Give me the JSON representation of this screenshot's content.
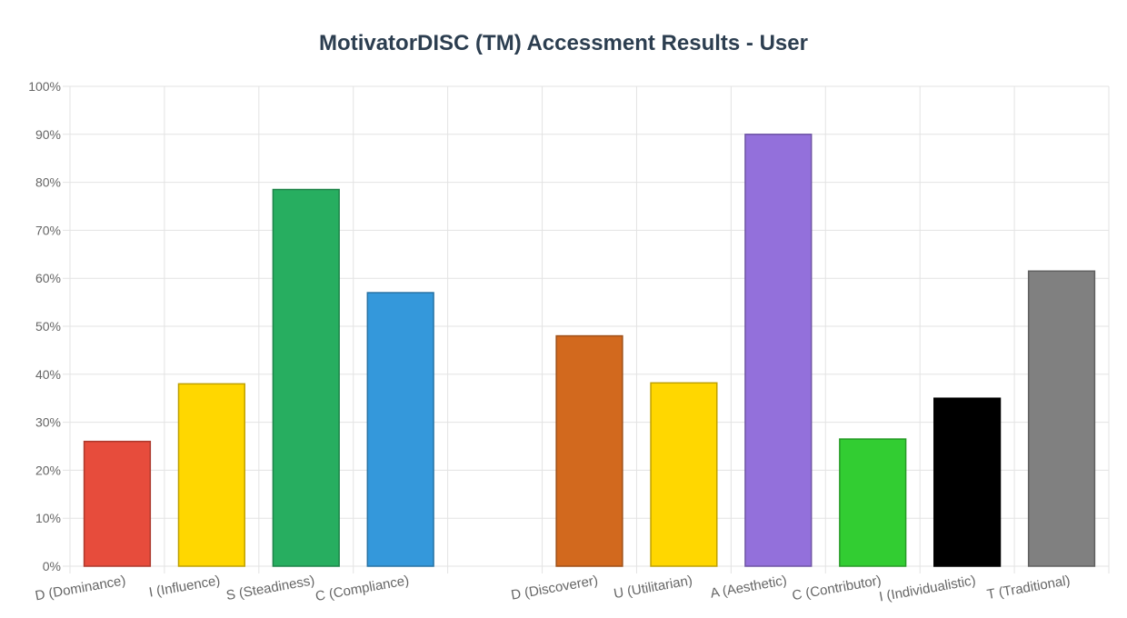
{
  "chart_data": {
    "type": "bar",
    "title": "MotivatorDISC (TM) Accessment Results - User",
    "xlabel": "",
    "ylabel": "",
    "ylim": [
      0,
      100
    ],
    "y_tick_format": "percent",
    "y_ticks": [
      0,
      10,
      20,
      30,
      40,
      50,
      60,
      70,
      80,
      90,
      100
    ],
    "grid": true,
    "legend": "none",
    "categories": [
      "D (Dominance)",
      "I (Influence)",
      "S (Steadiness)",
      "C (Compliance)",
      "",
      "D (Discoverer)",
      "U (Utilitarian)",
      "A (Aesthetic)",
      "C (Contributor)",
      "I (Individualistic)",
      "T (Traditional)"
    ],
    "values": [
      26,
      38,
      78.5,
      57,
      null,
      48,
      38.2,
      90,
      26.5,
      35,
      61.5
    ],
    "colors": [
      "#e74c3c",
      "#ffd700",
      "#27ae60",
      "#3498db",
      "",
      "#d2691e",
      "#ffd700",
      "#9370db",
      "#32cd32",
      "#000000",
      "#808080"
    ]
  }
}
